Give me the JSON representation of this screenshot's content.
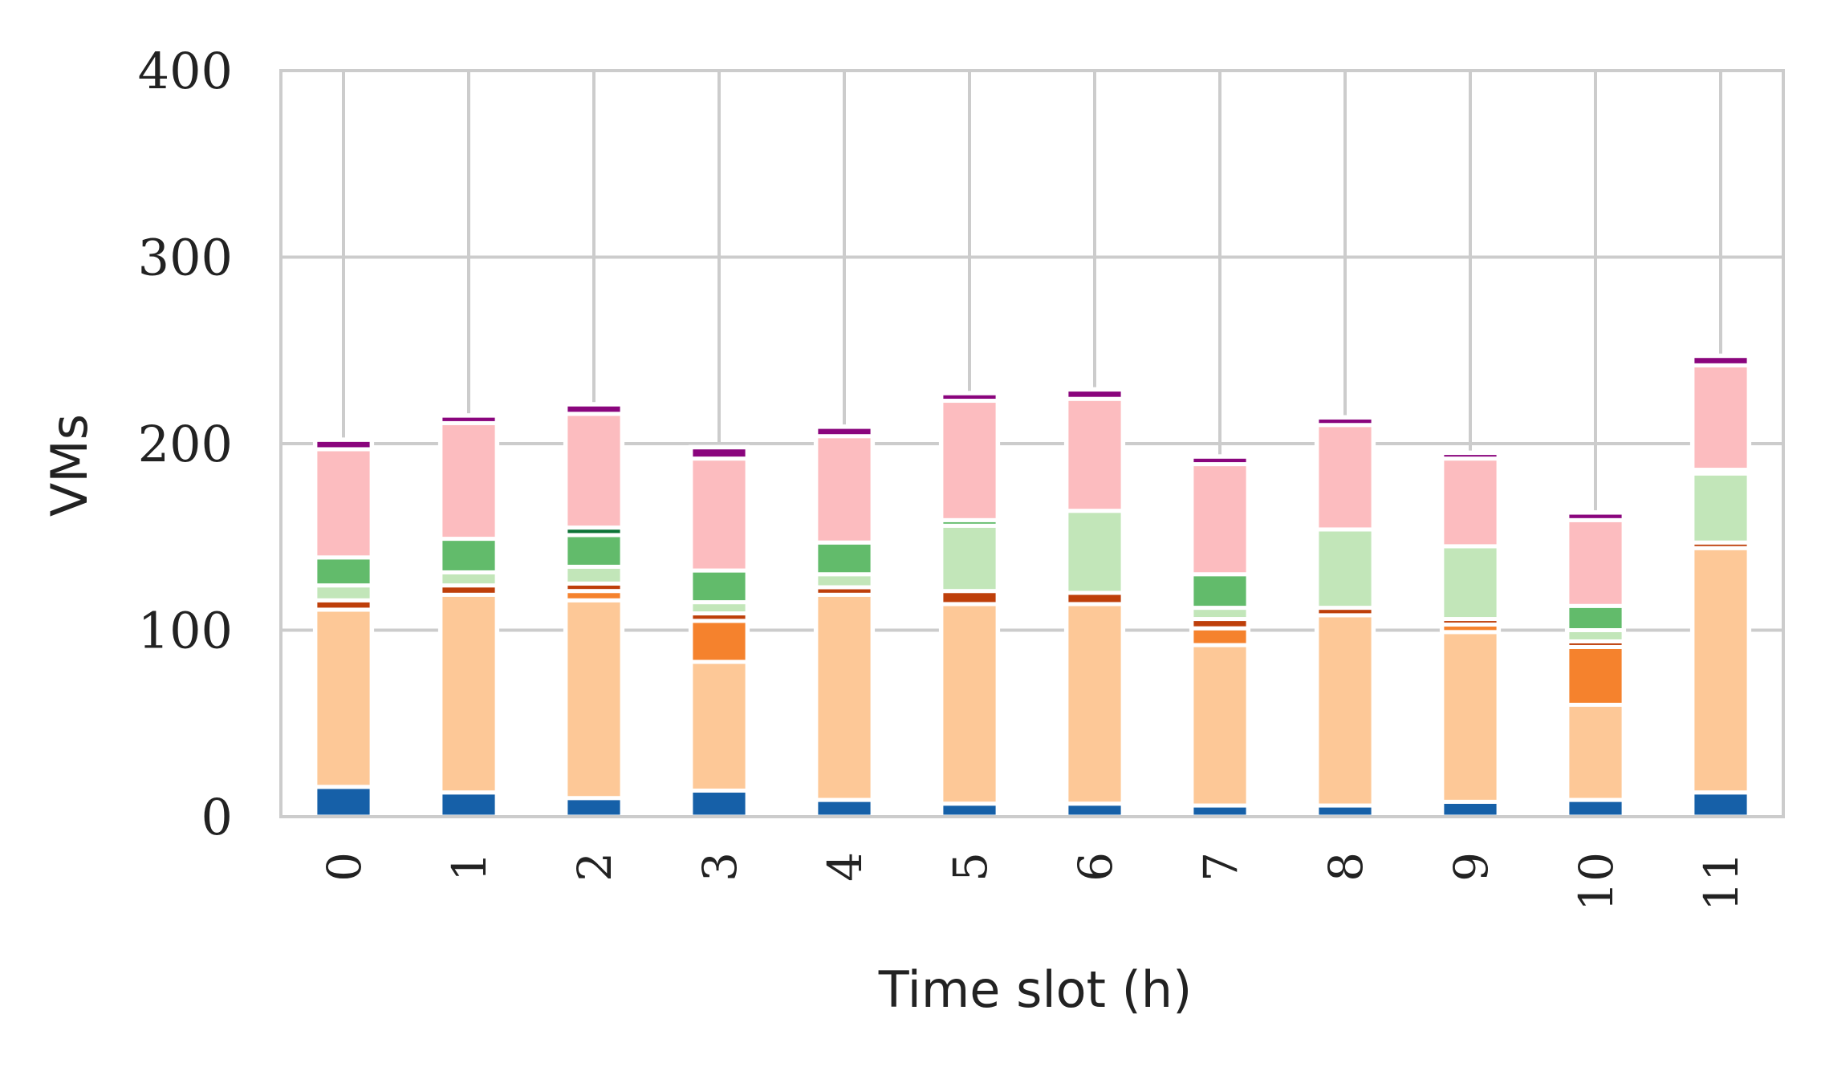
{
  "chart_data": {
    "type": "bar",
    "stacked": true,
    "xlabel": "Time slot (h)",
    "ylabel": "VMs",
    "ylim": [
      0,
      400
    ],
    "yticks": [
      0,
      100,
      200,
      300,
      400
    ],
    "grid": true,
    "categories": [
      "0",
      "1",
      "2",
      "3",
      "4",
      "5",
      "6",
      "7",
      "8",
      "9",
      "10",
      "11"
    ],
    "series": [
      {
        "color": "#1660a8",
        "values": [
          16,
          13,
          10,
          14,
          9,
          7,
          7,
          6,
          6,
          8,
          9,
          13
        ]
      },
      {
        "color": "#fdc897",
        "values": [
          95,
          106,
          106,
          69,
          110,
          107,
          107,
          86,
          102,
          91,
          51,
          131
        ]
      },
      {
        "color": "#f5822d",
        "values": [
          0,
          0,
          5,
          22,
          0,
          0,
          0,
          9,
          0,
          4,
          31,
          0
        ]
      },
      {
        "color": "#be3f0a",
        "values": [
          5,
          5,
          4,
          4,
          4,
          7,
          6,
          5,
          4,
          3,
          3,
          3
        ]
      },
      {
        "color": "#c2e6b9",
        "values": [
          8,
          7,
          9,
          6,
          7,
          35,
          44,
          6,
          42,
          39,
          6,
          37
        ]
      },
      {
        "color": "#62bb6b",
        "values": [
          15,
          18,
          17,
          17,
          17,
          3,
          0,
          18,
          0,
          0,
          13,
          0
        ]
      },
      {
        "color": "#0c7336",
        "values": [
          0,
          0,
          4,
          0,
          0,
          0,
          0,
          0,
          0,
          0,
          0,
          2
        ]
      },
      {
        "color": "#fcbcbf",
        "values": [
          58,
          62,
          61,
          60,
          57,
          64,
          60,
          59,
          56,
          47,
          46,
          56
        ]
      },
      {
        "color": "#8a057d",
        "values": [
          5,
          4,
          5,
          6,
          5,
          4,
          5,
          4,
          4,
          3,
          4,
          5
        ]
      }
    ]
  }
}
